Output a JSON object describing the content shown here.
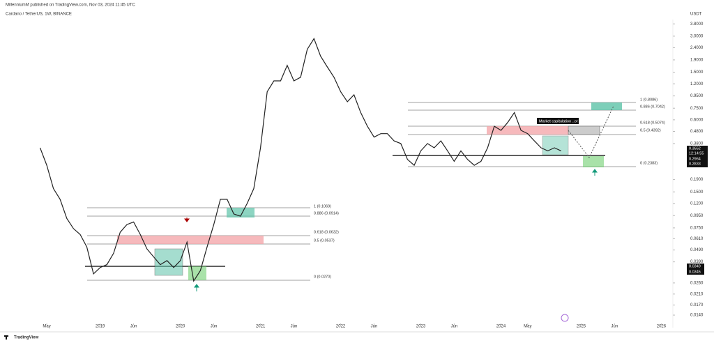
{
  "chart_data": {
    "type": "line",
    "header": "MillenniumM published on TradingView.com, Nov 03, 2024 11:45 UTC",
    "title": "Cardano / TetherUS, 1W, BINANCE",
    "currency": "USDT",
    "annotation": "Market capitulation ..or ?",
    "logo": "TradingView",
    "log_scale": true,
    "color": "#222222",
    "x": [
      "2018-04",
      "2018-05",
      "2018-06",
      "2018-07",
      "2018-08",
      "2018-09",
      "2018-10",
      "2018-11",
      "2018-12",
      "2019-01",
      "2019-02",
      "2019-03",
      "2019-04",
      "2019-05",
      "2019-06",
      "2019-07",
      "2019-08",
      "2019-09",
      "2019-10",
      "2019-11",
      "2019-12",
      "2020-01",
      "2020-02",
      "2020-03",
      "2020-04",
      "2020-05",
      "2020-06",
      "2020-07",
      "2020-08",
      "2020-09",
      "2020-10",
      "2020-11",
      "2020-12",
      "2021-01",
      "2021-02",
      "2021-03",
      "2021-04",
      "2021-05",
      "2021-06",
      "2021-07",
      "2021-08",
      "2021-09",
      "2021-10",
      "2021-11",
      "2021-12",
      "2022-01",
      "2022-02",
      "2022-03",
      "2022-04",
      "2022-05",
      "2022-06",
      "2022-07",
      "2022-08",
      "2022-09",
      "2022-10",
      "2022-11",
      "2022-12",
      "2023-01",
      "2023-02",
      "2023-03",
      "2023-04",
      "2023-05",
      "2023-06",
      "2023-07",
      "2023-08",
      "2023-09",
      "2023-10",
      "2023-11",
      "2023-12",
      "2024-01",
      "2024-02",
      "2024-03",
      "2024-04",
      "2024-05",
      "2024-06",
      "2024-07",
      "2024-08",
      "2024-09",
      "2024-10"
    ],
    "values": [
      0.35,
      0.25,
      0.16,
      0.13,
      0.09,
      0.074,
      0.066,
      0.052,
      0.031,
      0.035,
      0.037,
      0.046,
      0.069,
      0.08,
      0.084,
      0.066,
      0.05,
      0.043,
      0.037,
      0.04,
      0.035,
      0.04,
      0.057,
      0.027,
      0.033,
      0.052,
      0.08,
      0.13,
      0.13,
      0.098,
      0.094,
      0.12,
      0.16,
      0.35,
      1.03,
      1.27,
      1.27,
      1.71,
      1.27,
      1.36,
      2.33,
      2.86,
      2.04,
      1.66,
      1.36,
      1.03,
      0.85,
      0.97,
      0.69,
      0.53,
      0.43,
      0.46,
      0.46,
      0.4,
      0.38,
      0.28,
      0.25,
      0.33,
      0.38,
      0.35,
      0.4,
      0.33,
      0.27,
      0.33,
      0.28,
      0.25,
      0.27,
      0.35,
      0.53,
      0.49,
      0.57,
      0.69,
      0.49,
      0.46,
      0.4,
      0.35,
      0.33,
      0.35,
      0.33
    ],
    "xlim": [
      "2017-10",
      "2026-02"
    ],
    "xticks": [
      {
        "value": "2018-05",
        "label": "May"
      },
      {
        "value": "2019-01",
        "label": "2019"
      },
      {
        "value": "2019-06",
        "label": "Jun"
      },
      {
        "value": "2020-01",
        "label": "2020"
      },
      {
        "value": "2020-06",
        "label": "Jun"
      },
      {
        "value": "2021-01",
        "label": "2021"
      },
      {
        "value": "2021-06",
        "label": "Jun"
      },
      {
        "value": "2022-01",
        "label": "2022"
      },
      {
        "value": "2022-06",
        "label": "Jun"
      },
      {
        "value": "2023-01",
        "label": "2023"
      },
      {
        "value": "2023-06",
        "label": "Jun"
      },
      {
        "value": "2024-01",
        "label": "2024"
      },
      {
        "value": "2024-05",
        "label": "May"
      },
      {
        "value": "2025-01",
        "label": "2025"
      },
      {
        "value": "2025-06",
        "label": "Jun"
      },
      {
        "value": "2026-01",
        "label": "2026"
      }
    ],
    "ylim": [
      0.011,
      4.6
    ],
    "yticks": [
      {
        "value": 3.8,
        "label": "3.8000"
      },
      {
        "value": 3,
        "label": "3.0000"
      },
      {
        "value": 2.4,
        "label": "2.4000"
      },
      {
        "value": 1.9,
        "label": "1.9000"
      },
      {
        "value": 1.5,
        "label": "1.5000"
      },
      {
        "value": 1.2,
        "label": "1.2000"
      },
      {
        "value": 0.95,
        "label": "0.9500"
      },
      {
        "value": 0.75,
        "label": "0.7500"
      },
      {
        "value": 0.6,
        "label": "0.6000"
      },
      {
        "value": 0.48,
        "label": "0.4800"
      },
      {
        "value": 0.38,
        "label": "0.3800"
      },
      {
        "value": 0.19,
        "label": "0.1900"
      },
      {
        "value": 0.15,
        "label": "0.1500"
      },
      {
        "value": 0.12,
        "label": "0.1200"
      },
      {
        "value": 0.095,
        "label": "0.0950"
      },
      {
        "value": 0.075,
        "label": "0.0750"
      },
      {
        "value": 0.061,
        "label": "0.0610"
      },
      {
        "value": 0.049,
        "label": "0.0490"
      },
      {
        "value": 0.039,
        "label": "0.0390"
      },
      {
        "value": 0.026,
        "label": "0.0260"
      },
      {
        "value": 0.021,
        "label": "0.0210"
      },
      {
        "value": 0.017,
        "label": "0.0170"
      },
      {
        "value": 0.014,
        "label": "0.0140"
      }
    ],
    "fib_labels_upper": [
      "1 (0.8086)",
      "0.886 (0.7042)",
      "0.618 (0.5074)",
      "0.5 (0.4392)",
      "0 (0.2383)"
    ],
    "fib_labels_lower": [
      "1 (0.1069)",
      "0.886 (0.0914)",
      "0.618 (0.0632)",
      "0.5 (0.0537)",
      "0 (0.0270)"
    ],
    "price_tags": [
      "0.3552",
      "12:14:55",
      "0.2964",
      "0.2833",
      "0.0349",
      "0.0345"
    ]
  }
}
